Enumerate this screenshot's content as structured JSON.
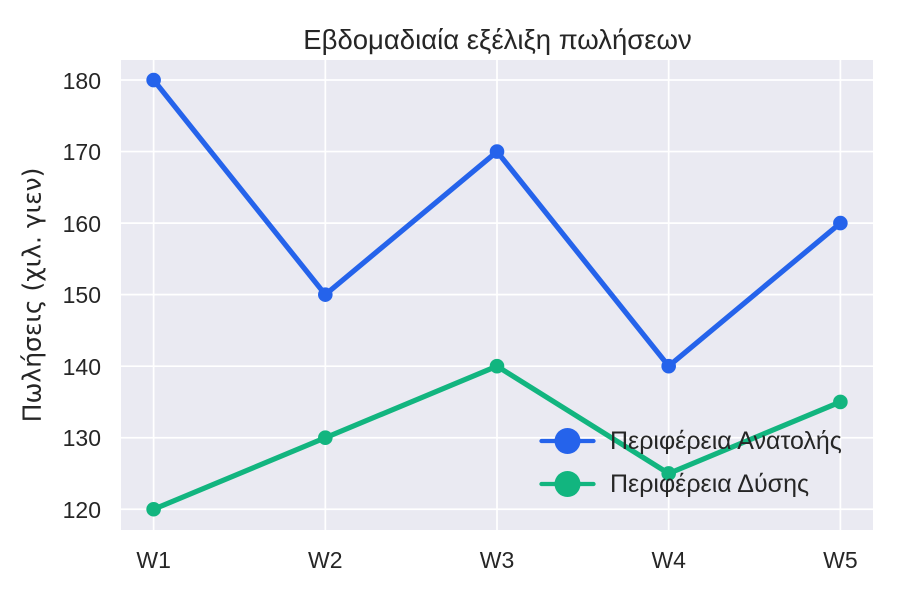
{
  "chart_data": {
    "type": "line",
    "title": "Εβδομαδιαία εξέλιξη πωλήσεων",
    "xlabel": "",
    "ylabel": "Πωλήσεις (χιλ. γιεν)",
    "categories": [
      "W1",
      "W2",
      "W3",
      "W4",
      "W5"
    ],
    "series": [
      {
        "name": "Περιφέρεια Ανατολής",
        "values": [
          180,
          150,
          170,
          140,
          160
        ],
        "color": "#2563eb"
      },
      {
        "name": "Περιφέρεια Δύσης",
        "values": [
          120,
          130,
          140,
          125,
          135
        ],
        "color": "#12b57f"
      }
    ],
    "yticks": [
      120,
      130,
      140,
      150,
      160,
      170,
      180
    ],
    "ylim": [
      117.1,
      182.8
    ],
    "xlim": [
      -0.19,
      4.19
    ],
    "grid": "on",
    "legend_position": "lower right",
    "plot_background_color": "#eaeaf2",
    "grid_color": "#ffffff",
    "text_color": "#262626"
  }
}
